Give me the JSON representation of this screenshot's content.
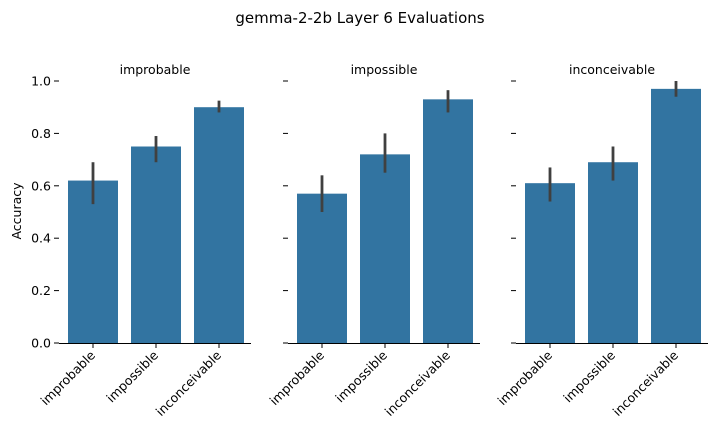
{
  "chart_data": {
    "type": "bar",
    "title": "gemma-2-2b Layer 6 Evaluations",
    "ylabel": "Accuracy",
    "xlabel": "",
    "ylim": [
      0,
      1.0
    ],
    "yticks": [
      "0.0",
      "0.2",
      "0.4",
      "0.6",
      "0.8",
      "1.0"
    ],
    "categories": [
      "improbable",
      "impossible",
      "inconceivable"
    ],
    "bar_color": "#3274a1",
    "errorbar_color": "#404040",
    "grid": false,
    "panels": [
      {
        "title": "improbable",
        "values": [
          0.62,
          0.75,
          0.9
        ],
        "error_low": [
          0.53,
          0.69,
          0.88
        ],
        "error_high": [
          0.69,
          0.79,
          0.925
        ]
      },
      {
        "title": "impossible",
        "values": [
          0.57,
          0.72,
          0.93
        ],
        "error_low": [
          0.5,
          0.65,
          0.88
        ],
        "error_high": [
          0.64,
          0.8,
          0.965
        ]
      },
      {
        "title": "inconceivable",
        "values": [
          0.61,
          0.69,
          0.97
        ],
        "error_low": [
          0.54,
          0.62,
          0.94
        ],
        "error_high": [
          0.67,
          0.75,
          1.0
        ]
      }
    ]
  }
}
